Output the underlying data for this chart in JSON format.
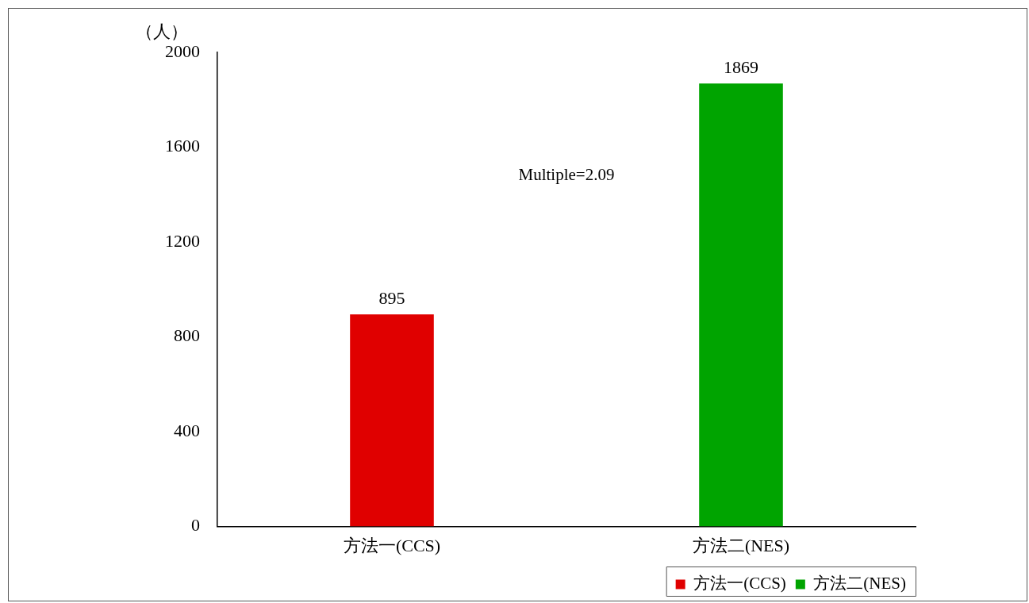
{
  "chart_data": {
    "type": "bar",
    "ylabel": "（人）",
    "categories": [
      "方法一(CCS)",
      "方法二(NES)"
    ],
    "series": [
      {
        "name": "方法一(CCS)",
        "color": "#e00000",
        "values": [
          895,
          null
        ]
      },
      {
        "name": "方法二(NES)",
        "color": "#00a400",
        "values": [
          null,
          1869
        ]
      }
    ],
    "ylim": [
      0,
      2000
    ],
    "yticks": [
      0,
      400,
      800,
      1200,
      1600,
      2000
    ],
    "grid": false,
    "data_labels": true,
    "legend": "bottom right",
    "annotations": [
      "Multiple=2.09"
    ]
  }
}
